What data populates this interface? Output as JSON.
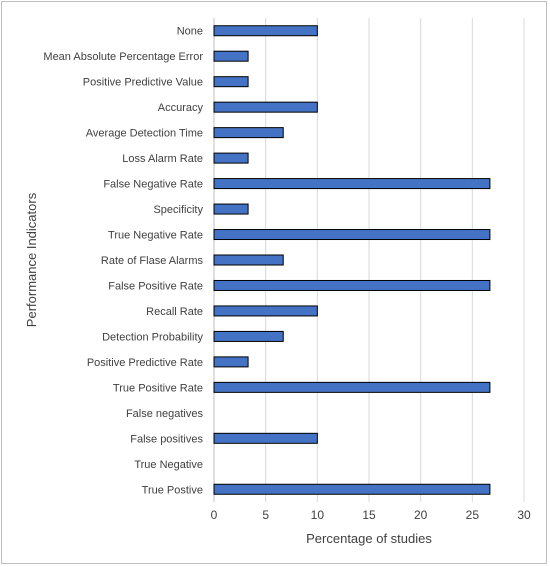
{
  "chart_data": {
    "type": "bar",
    "orientation": "horizontal",
    "categories": [
      "None",
      "Mean Absolute Percentage Error",
      "Positive Predictive Value",
      "Accuracy",
      "Average Detection Time",
      "Loss Alarm Rate",
      "False Negative Rate",
      "Specificity",
      "True Negative Rate",
      "Rate of Flase Alarms",
      "False Positive Rate",
      "Recall Rate",
      "Detection Probability",
      "Positive Predictive Rate",
      "True Positive Rate",
      "False negatives",
      "False positives",
      "True Negative",
      "True Postive"
    ],
    "values": [
      10,
      3.3,
      3.3,
      10,
      6.7,
      3.3,
      26.7,
      3.3,
      26.7,
      6.7,
      26.7,
      10,
      6.7,
      3.3,
      26.7,
      0,
      10,
      0,
      26.7
    ],
    "xlabel": "Percentage of studies",
    "ylabel": "Performance Indicators",
    "xlim": [
      0,
      30
    ],
    "xticks": [
      0,
      5,
      10,
      15,
      20,
      25,
      30
    ],
    "grid": "vertical",
    "bar_color": "#4472c4",
    "bar_border_color": "#000000",
    "grid_color": "#d9d9d9"
  }
}
